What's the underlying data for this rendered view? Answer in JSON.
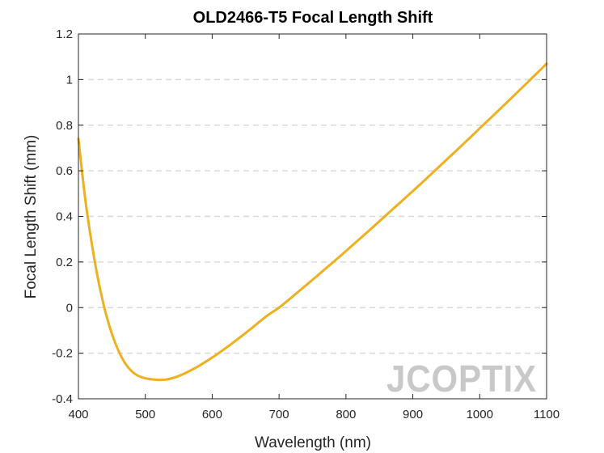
{
  "chart_data": {
    "type": "line",
    "title": "OLD2466-T5 Focal Length Shift",
    "xlabel": "Wavelength (nm)",
    "ylabel": "Focal Length Shift (mm)",
    "xlim": [
      400,
      1100
    ],
    "ylim": [
      -0.4,
      1.2
    ],
    "xticks": [
      400,
      500,
      600,
      700,
      800,
      900,
      1000,
      1100
    ],
    "yticks": [
      -0.4,
      -0.2,
      0,
      0.2,
      0.4,
      0.6,
      0.8,
      1,
      1.2
    ],
    "ytick_labels": [
      "-0.4",
      "-0.2",
      "0",
      "0.2",
      "0.4",
      "0.6",
      "0.8",
      "1",
      "1.2"
    ],
    "grid": "horizontal-dashed",
    "series": [
      {
        "name": "Focal Length Shift",
        "color": "#EDB120",
        "x": [
          400,
          410,
          420,
          430,
          440,
          450,
          460,
          470,
          480,
          490,
          500,
          510,
          520,
          530,
          540,
          550,
          560,
          580,
          600,
          620,
          640,
          660,
          680,
          700,
          720,
          740,
          760,
          780,
          800,
          820,
          840,
          860,
          880,
          900,
          920,
          940,
          960,
          980,
          1000,
          1020,
          1040,
          1060,
          1080,
          1100
        ],
        "y": [
          0.74,
          0.48,
          0.28,
          0.115,
          -0.015,
          -0.115,
          -0.19,
          -0.245,
          -0.28,
          -0.3,
          -0.31,
          -0.315,
          -0.317,
          -0.316,
          -0.31,
          -0.3,
          -0.287,
          -0.256,
          -0.219,
          -0.178,
          -0.134,
          -0.088,
          -0.04,
          0.0,
          0.048,
          0.097,
          0.147,
          0.197,
          0.248,
          0.3,
          0.352,
          0.405,
          0.458,
          0.511,
          0.565,
          0.62,
          0.675,
          0.73,
          0.786,
          0.842,
          0.898,
          0.955,
          1.012,
          1.07
        ]
      }
    ]
  },
  "watermark": {
    "text": "JCOPTIX",
    "color": "#c8c8c8",
    "accent_color": "#f3c9a8"
  }
}
